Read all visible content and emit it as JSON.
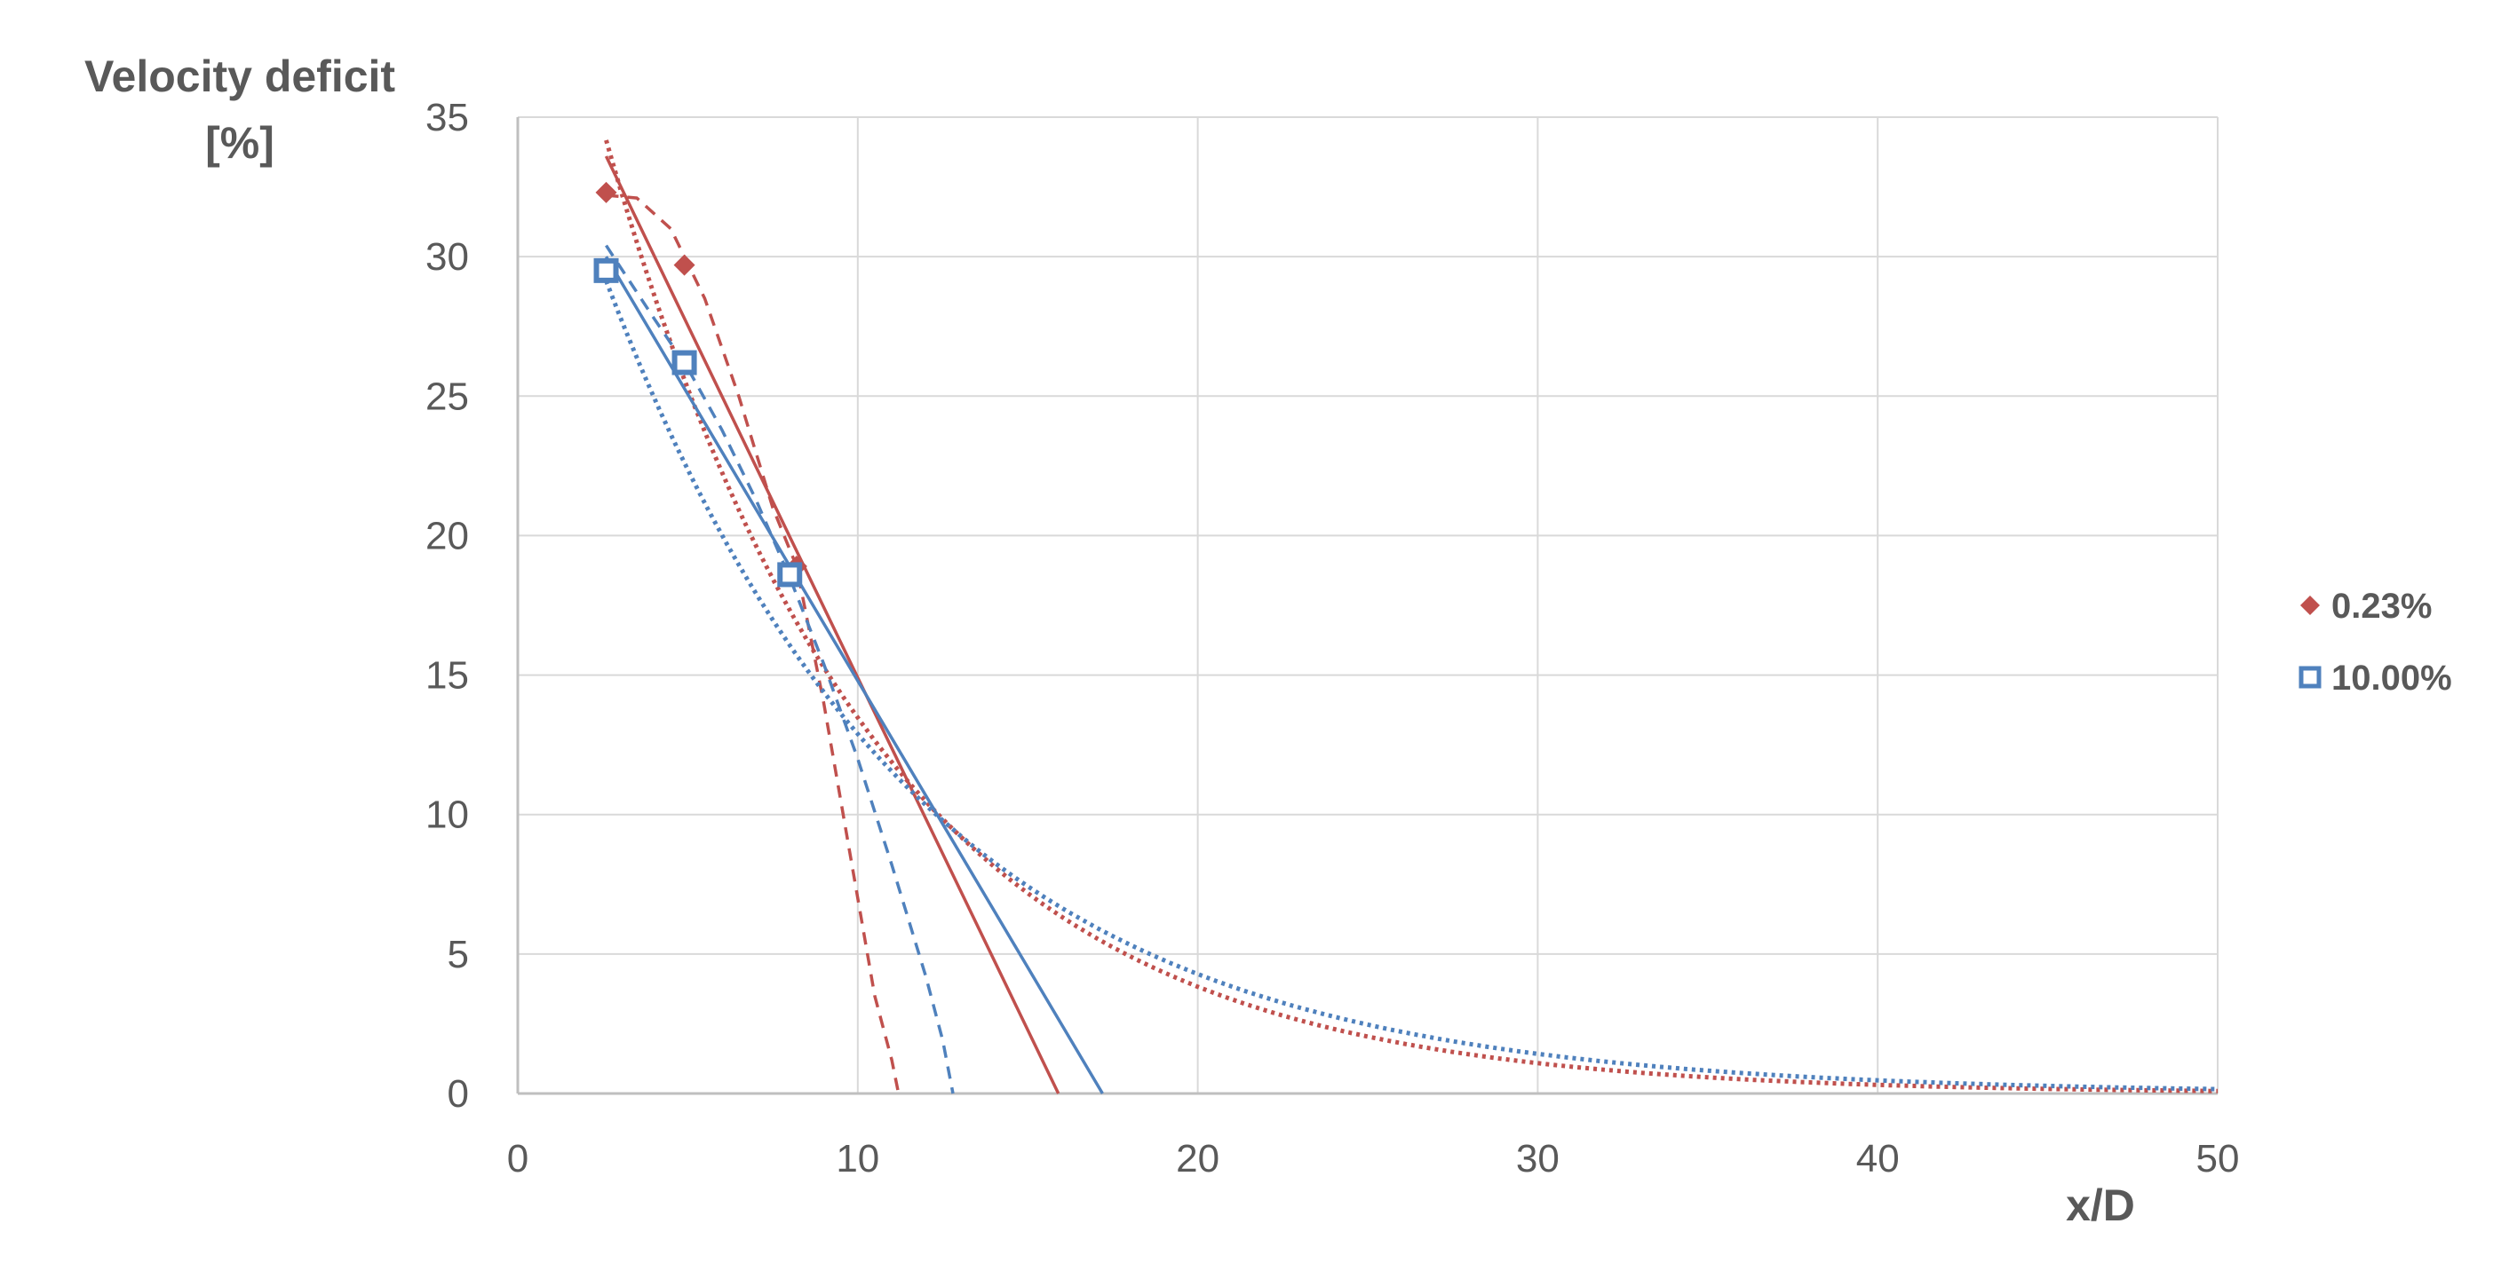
{
  "chart_data": {
    "type": "scatter",
    "ylabel_line1": "Velocity deficit",
    "ylabel_line2": "[%]",
    "xlabel": "x/D",
    "xlim": [
      0,
      50
    ],
    "ylim": [
      0,
      35
    ],
    "xticks": [
      "0",
      "10",
      "20",
      "30",
      "40",
      "50"
    ],
    "yticks": [
      "0",
      "5",
      "10",
      "15",
      "20",
      "25",
      "30",
      "35"
    ],
    "grid": true,
    "legend_position": "right",
    "series": [
      {
        "name": "0.23%",
        "color": "#c0504d",
        "marker": "diamond",
        "points": [
          {
            "x": 2.6,
            "y": 32.3
          },
          {
            "x": 4.9,
            "y": 29.7
          },
          {
            "x": 8.2,
            "y": 18.9
          }
        ],
        "trendlines": [
          {
            "style": "solid",
            "kind": "linear",
            "x": [
              2.6,
              15.9
            ],
            "y": [
              33.6,
              0
            ]
          },
          {
            "style": "dashed",
            "kind": "curve",
            "x": [
              2.6,
              3.5,
              4.5,
              5.5,
              6.5,
              7.5,
              8.2,
              9.0,
              10.0,
              10.5,
              11.0,
              11.2
            ],
            "y": [
              32.2,
              32.1,
              31.0,
              28.5,
              25.0,
              21.0,
              18.9,
              14.0,
              7.0,
              3.5,
              1.2,
              0
            ]
          },
          {
            "style": "dotted",
            "kind": "exponential",
            "a": 47.4,
            "b": 0.1258,
            "x": [
              2.6,
              50
            ]
          }
        ]
      },
      {
        "name": "10.00%",
        "color": "#4f81bd",
        "marker": "square",
        "points": [
          {
            "x": 2.6,
            "y": 29.5
          },
          {
            "x": 4.9,
            "y": 26.2
          },
          {
            "x": 8.0,
            "y": 18.6
          }
        ],
        "trendlines": [
          {
            "style": "solid",
            "kind": "linear",
            "x": [
              2.6,
              17.2
            ],
            "y": [
              30.0,
              0
            ]
          },
          {
            "style": "dashed",
            "kind": "curve",
            "x": [
              2.6,
              4.0,
              5.0,
              6.0,
              7.0,
              8.0,
              9.0,
              10.0,
              11.0,
              12.0,
              12.5,
              12.8
            ],
            "y": [
              30.4,
              27.8,
              26.0,
              23.8,
              21.3,
              18.5,
              15.4,
              12.0,
              8.2,
              4.2,
              1.9,
              0
            ]
          },
          {
            "style": "dotted",
            "kind": "exponential",
            "a": 38.8,
            "b": 0.1102,
            "x": [
              2.6,
              50
            ]
          }
        ]
      }
    ]
  }
}
